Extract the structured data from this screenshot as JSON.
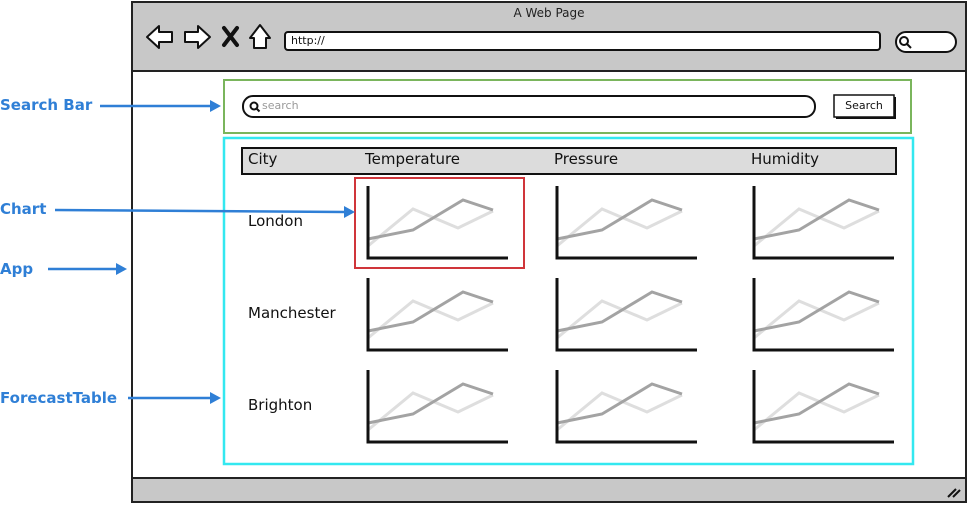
{
  "window": {
    "title": "A Web Page",
    "url": "http://"
  },
  "search": {
    "placeholder": "search",
    "button_label": "Search"
  },
  "table": {
    "columns": [
      "City",
      "Temperature",
      "Pressure",
      "Humidity"
    ],
    "rows": [
      "London",
      "Manchester",
      "Brighton"
    ]
  },
  "annotations": {
    "search_bar": "Search Bar",
    "chart": "Chart",
    "app": "App",
    "forecast_table": "ForecastTable"
  },
  "colors": {
    "annotation": "#2f7fd6",
    "search_bar_frame": "#7ab55c",
    "app_frame": "#33e8f0",
    "chart_highlight": "#d0353a",
    "window_chrome": "#c8c8c8"
  }
}
